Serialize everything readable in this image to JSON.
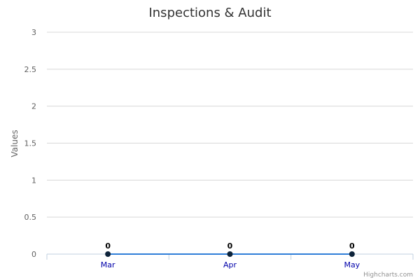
{
  "chart_data": {
    "type": "line",
    "title": "Inspections & Audit",
    "ylabel": "Values",
    "categories": [
      "Mar",
      "Apr",
      "May"
    ],
    "series": [
      {
        "values": [
          0,
          0,
          0
        ]
      }
    ],
    "ylim": [
      0,
      3
    ],
    "yticks": [
      "0",
      "0.5",
      "1",
      "1.5",
      "2",
      "2.5",
      "3"
    ],
    "ytick_values": [
      0,
      0.5,
      1,
      1.5,
      2,
      2.5,
      3
    ],
    "data_labels": [
      "0",
      "0",
      "0"
    ],
    "grid": true,
    "legend": "none",
    "line_color": "#2f7ed8",
    "marker_color": "#0d233a"
  },
  "credits": "Highcharts.com"
}
